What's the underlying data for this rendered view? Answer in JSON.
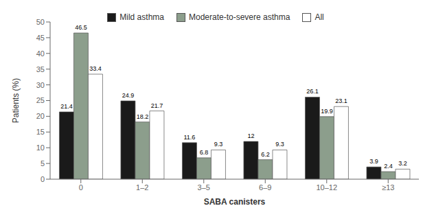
{
  "chart_data": {
    "type": "bar",
    "categories": [
      "0",
      "1–2",
      "3–5",
      "6–9",
      "10–12",
      "≥13"
    ],
    "series": [
      {
        "name": "Mild asthma",
        "color": "#1a1a1a",
        "values": [
          21.4,
          24.9,
          11.6,
          12,
          26.1,
          3.9
        ]
      },
      {
        "name": "Moderate-to-severe asthma",
        "color": "#8c9e8c",
        "values": [
          46.5,
          18.2,
          6.8,
          6.2,
          19.9,
          2.4
        ]
      },
      {
        "name": "All",
        "color": "#ffffff",
        "values": [
          33.4,
          21.7,
          9.3,
          9.3,
          23.1,
          3.2
        ]
      }
    ],
    "xlabel": "SABA canisters",
    "ylabel": "Patients (%)",
    "ylim": [
      0,
      50
    ],
    "yticks": [
      0,
      5,
      10,
      15,
      20,
      25,
      30,
      35,
      40,
      45,
      50
    ],
    "grid": false,
    "legend": "top",
    "data_labels": true
  }
}
